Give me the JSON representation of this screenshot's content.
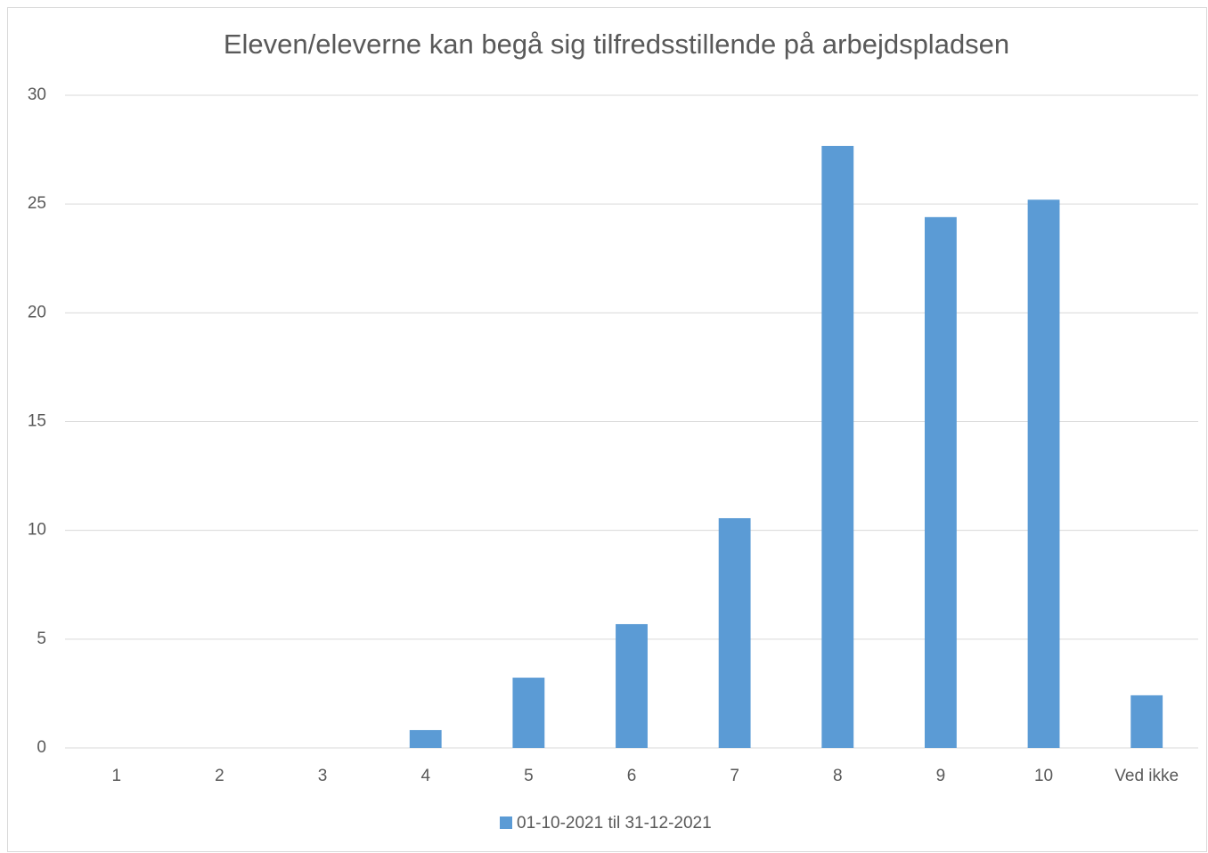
{
  "chart_data": {
    "type": "bar",
    "title": "Eleven/eleverne kan begå sig tilfredsstillende på arbejdspladsen",
    "categories": [
      "1",
      "2",
      "3",
      "4",
      "5",
      "6",
      "7",
      "8",
      "9",
      "10",
      "Ved ikke"
    ],
    "series": [
      {
        "name": "01-10-2021 til 31-12-2021",
        "color": "#5b9bd5",
        "values": [
          0,
          0,
          0,
          0.82,
          3.23,
          5.69,
          10.56,
          27.67,
          24.4,
          25.2,
          2.42
        ]
      }
    ],
    "ylim": [
      0,
      30
    ],
    "yticks": [
      0,
      5,
      10,
      15,
      20,
      25,
      30
    ],
    "grid": true,
    "legend": "bottom"
  }
}
